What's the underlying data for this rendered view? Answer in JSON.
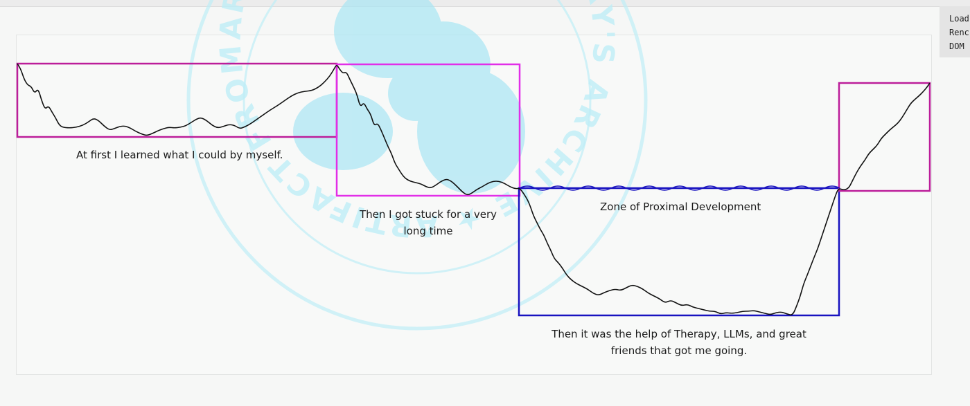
{
  "captions": {
    "phase1": "At first I learned what I could by myself.",
    "phase2_line1": "Then I got stuck for a very",
    "phase2_line2": "long time",
    "zpd": "Zone of Proximal Development",
    "phase3_line1": "Then it was the help of Therapy, LLMs, and great",
    "phase3_line2": "friends that got me going."
  },
  "watermark": {
    "text": "ARTIFACT FROM POUYA KARY'S ARCHIVE ★ ARTIFACT FROM POUYA KARY'S ARCHIVE ★",
    "color": "#a9e6f4"
  },
  "colors": {
    "box_magenta": "#bc1d9a",
    "box_pink": "#e22ee8",
    "box_blue": "#1812c0",
    "curve": "#111111"
  },
  "debug_panel": {
    "line1": "Load",
    "line2": "Renc",
    "line3": "DOM"
  }
}
